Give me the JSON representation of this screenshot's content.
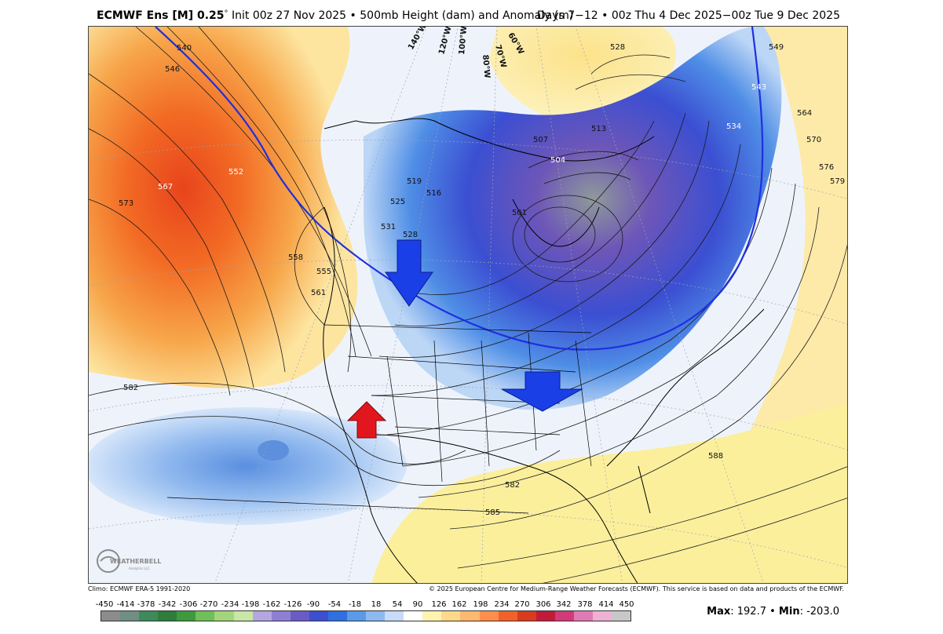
{
  "header": {
    "model": "ECMWF Ens [M] 0.25",
    "degree": "°",
    "init": " Init 00z 27 Nov 2025",
    "bullet": " • ",
    "product": "500mb Height (dam) and Anomaly (m)",
    "valid": "Days 7−12 • 00z Thu 4 Dec 2025−00z Tue 9 Dec 2025"
  },
  "map": {
    "contour_labels": [
      "540",
      "546",
      "552",
      "567",
      "573",
      "558",
      "555",
      "561",
      "582",
      "528",
      "549",
      "543",
      "534",
      "564",
      "570",
      "576",
      "579",
      "513",
      "507",
      "504",
      "501",
      "519",
      "516",
      "525",
      "531",
      "528",
      "588",
      "582",
      "585"
    ],
    "longitude_labels": [
      "140°W",
      "120°W",
      "100°W",
      "80°W",
      "70°W",
      "60°W"
    ],
    "arrows": [
      {
        "name": "down-arrow-northern-plains",
        "color": "#1a3fe6",
        "direction": "down"
      },
      {
        "name": "down-arrow-ohio-valley",
        "color": "#1a3fe6",
        "direction": "down"
      },
      {
        "name": "up-arrow-southwest",
        "color": "#e2171d",
        "direction": "up"
      }
    ],
    "colors": {
      "positive_anomaly": "#f08030",
      "strong_positive": "#e8441c",
      "negative_anomaly": "#3a78e0",
      "strong_negative": "#5a4bb8",
      "highlight_contour": "#1f2fe0"
    }
  },
  "logo": {
    "text": "WEATHERBELL",
    "sub": "Analytics LLC"
  },
  "footer": {
    "climo": "Climo: ECMWF ERA-5 1991-2020",
    "copyright": "© 2025 European Centre for Medium-Range Weather Forecasts (ECMWF). This service is based on data and products of the ECMWF."
  },
  "colorbar": {
    "ticks": [
      "-450",
      "-414",
      "-378",
      "-342",
      "-306",
      "-270",
      "-234",
      "-198",
      "-162",
      "-126",
      "-90",
      "-54",
      "-18",
      "18",
      "54",
      "90",
      "126",
      "162",
      "198",
      "234",
      "270",
      "306",
      "342",
      "378",
      "414",
      "450"
    ],
    "colors": [
      "#8c8c8c",
      "#6e8f82",
      "#3f8a5a",
      "#2f7d3a",
      "#3e9a3c",
      "#6fbf5a",
      "#a3d67a",
      "#c8e6a6",
      "#b4a6e0",
      "#8f7fd4",
      "#6a5cc6",
      "#3c4fd0",
      "#2f6fe0",
      "#5a9ae8",
      "#8cbaf0",
      "#c6dcf8",
      "#ffffff",
      "#fff3b0",
      "#ffd98a",
      "#ffb870",
      "#ff8f4a",
      "#f2612a",
      "#d93b1f",
      "#c21b3a",
      "#d23a78",
      "#e07ab4",
      "#efb0d4",
      "#c8c8c8"
    ]
  },
  "stats": {
    "max_label": "Max",
    "max_value": ": 192.7",
    "sep": " • ",
    "min_label": "Min",
    "min_value": ": -203.0"
  }
}
